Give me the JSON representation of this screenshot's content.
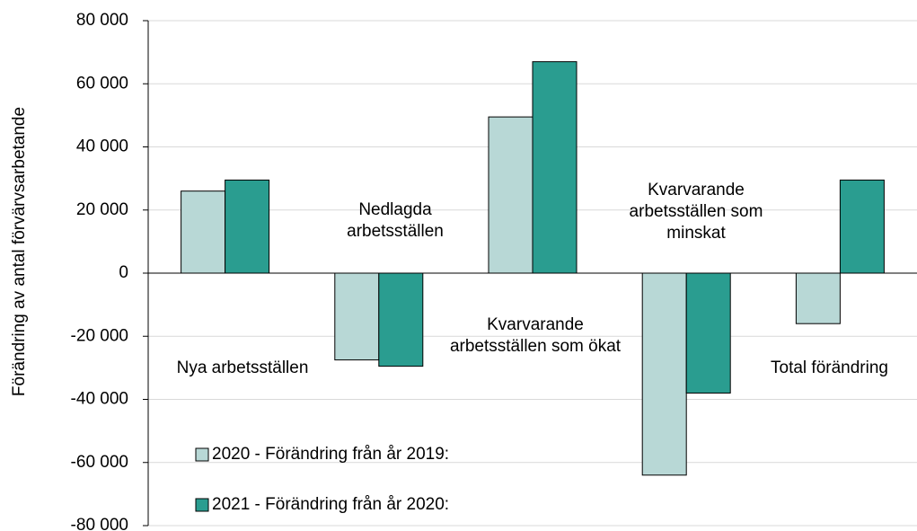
{
  "chart_data": {
    "type": "bar",
    "y_axis_label": "Förändring av antal förvärvsarbetande",
    "categories": [
      "Nya arbetsställen",
      "Nedlagda arbetsställen",
      "Kvarvarande arbetsställen som ökat",
      "Kvarvarande arbetsställen som minskat",
      "Total förändring"
    ],
    "series": [
      {
        "name": "2020 - Förändring från år 2019:",
        "color": "#b8d8d6",
        "values": [
          26000,
          -27500,
          49500,
          -64000,
          -16000
        ]
      },
      {
        "name": "2021 - Förändring från år 2020:",
        "color": "#2a9d90",
        "values": [
          29500,
          -29500,
          67000,
          -38000,
          29500
        ]
      }
    ],
    "ylim": [
      -80000,
      80000
    ],
    "yticks": [
      {
        "value": -80000,
        "label": "-80 000"
      },
      {
        "value": -60000,
        "label": "-60 000"
      },
      {
        "value": -40000,
        "label": "-40 000"
      },
      {
        "value": -20000,
        "label": "-20 000"
      },
      0,
      {
        "value": 20000,
        "label": "20 000"
      },
      {
        "value": 40000,
        "label": "40 000"
      },
      {
        "value": 60000,
        "label": "60 000"
      },
      {
        "value": 80000,
        "label": "80 000"
      }
    ],
    "grid": true,
    "legend": "lower left"
  }
}
